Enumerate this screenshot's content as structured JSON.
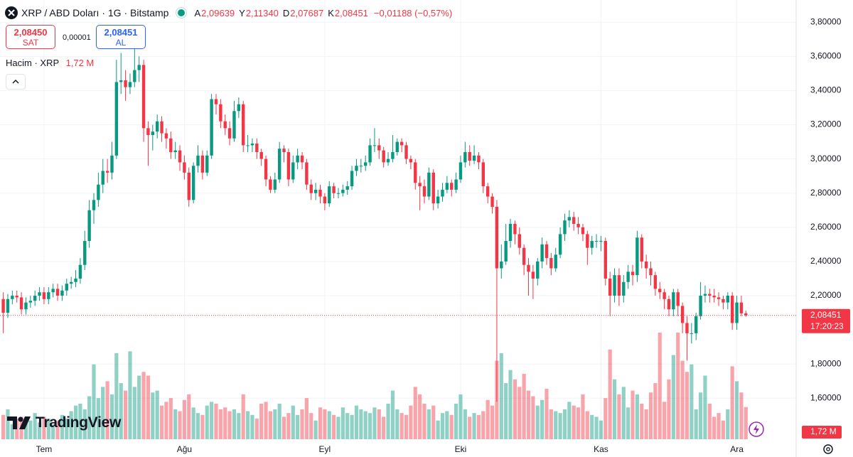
{
  "header": {
    "symbol": "XRP / ABD Doları · 1G · Bitstamp",
    "ohlc": [
      {
        "key": "A",
        "value": "2,09639"
      },
      {
        "key": "Y",
        "value": "2,11340"
      },
      {
        "key": "D",
        "value": "2,07687"
      },
      {
        "key": "K",
        "value": "2,08451"
      }
    ],
    "change": "−0,01188 (−0,57%)"
  },
  "trade": {
    "sell_price": "2,08450",
    "sell_label": "SAT",
    "spread": "0,00001",
    "buy_price": "2,08451",
    "buy_label": "AL"
  },
  "volume_legend": {
    "title": "Hacim · XRP",
    "value": "1,72 M"
  },
  "logo": "TradingView",
  "chart_data": {
    "type": "candlestick",
    "categories": [
      null,
      null,
      null,
      null,
      null,
      null,
      null,
      null,
      null,
      "Tem",
      null,
      null,
      null,
      null,
      null,
      null,
      null,
      null,
      null,
      null,
      null,
      null,
      null,
      null,
      null,
      null,
      null,
      null,
      null,
      null,
      null,
      null,
      null,
      null,
      null,
      null,
      null,
      null,
      null,
      null,
      "Ağu",
      null,
      null,
      null,
      null,
      null,
      null,
      null,
      null,
      null,
      null,
      null,
      null,
      null,
      null,
      null,
      null,
      null,
      null,
      null,
      null,
      null,
      null,
      null,
      null,
      null,
      null,
      null,
      null,
      null,
      null,
      "Eyl",
      null,
      null,
      null,
      null,
      null,
      null,
      null,
      null,
      null,
      null,
      null,
      null,
      null,
      null,
      null,
      null,
      null,
      null,
      null,
      null,
      null,
      null,
      null,
      null,
      null,
      null,
      null,
      null,
      null,
      "Eki",
      null,
      null,
      null,
      null,
      null,
      null,
      null,
      null,
      null,
      null,
      null,
      null,
      null,
      null,
      null,
      null,
      null,
      null,
      null,
      null,
      null,
      null,
      null,
      null,
      null,
      null,
      null,
      null,
      null,
      null,
      "Kas",
      null,
      null,
      null,
      null,
      null,
      null,
      null,
      null,
      null,
      null,
      null,
      null,
      null,
      null,
      null,
      null,
      null,
      null,
      null,
      null,
      null,
      null,
      null,
      null,
      null,
      null,
      null,
      null,
      null,
      "Ara",
      null,
      null
    ],
    "open": [
      2.18,
      2.1,
      2.18,
      2.2,
      2.19,
      2.12,
      2.16,
      2.17,
      2.2,
      2.22,
      2.18,
      2.22,
      2.24,
      2.2,
      2.23,
      2.27,
      2.28,
      2.3,
      2.38,
      2.52,
      2.7,
      2.76,
      2.85,
      2.93,
      2.92,
      3.02,
      3.45,
      3.46,
      3.42,
      3.45,
      3.52,
      3.55,
      3.18,
      3.14,
      3.16,
      3.22,
      3.15,
      3.12,
      3.04,
      3.05,
      2.98,
      2.92,
      2.76,
      2.96,
      3.02,
      2.92,
      3.02,
      3.35,
      3.32,
      3.22,
      3.18,
      3.12,
      3.28,
      3.32,
      3.08,
      3.08,
      3.09,
      3.04,
      3.0,
      2.88,
      2.82,
      2.88,
      3.06,
      3.04,
      2.88,
      2.98,
      3.02,
      2.98,
      2.85,
      2.8,
      2.82,
      2.78,
      2.74,
      2.84,
      2.8,
      2.8,
      2.82,
      2.84,
      2.93,
      2.96,
      2.96,
      2.98,
      3.08,
      3.08,
      3.05,
      2.98,
      3.0,
      3.04,
      3.1,
      3.08,
      3.0,
      2.98,
      2.86,
      2.84,
      2.78,
      2.92,
      2.74,
      2.78,
      2.82,
      2.86,
      2.82,
      2.88,
      2.98,
      3.04,
      2.99,
      3.02,
      2.98,
      2.84,
      2.78,
      2.72,
      2.36,
      2.4,
      2.52,
      2.62,
      2.56,
      2.48,
      2.38,
      2.34,
      2.3,
      2.4,
      2.5,
      2.42,
      2.36,
      2.44,
      2.56,
      2.64,
      2.66,
      2.62,
      2.6,
      2.56,
      2.48,
      2.52,
      2.52,
      2.52,
      2.3,
      2.2,
      2.32,
      2.2,
      2.28,
      2.34,
      2.32,
      2.54,
      2.4,
      2.36,
      2.32,
      2.24,
      2.22,
      2.18,
      2.12,
      2.22,
      2.14,
      2.04,
      1.98,
      1.98,
      2.08,
      2.2,
      2.21,
      2.2,
      2.19,
      2.18,
      2.16,
      2.2,
      2.04,
      2.16,
      2.09639
    ],
    "high": [
      2.22,
      2.21,
      2.23,
      2.23,
      2.22,
      2.19,
      2.2,
      2.23,
      2.25,
      2.25,
      2.25,
      2.27,
      2.27,
      2.26,
      2.3,
      2.31,
      2.35,
      2.42,
      2.58,
      2.76,
      2.8,
      2.92,
      3.0,
      3.0,
      3.1,
      3.58,
      3.62,
      3.52,
      3.5,
      3.65,
      3.6,
      3.58,
      3.22,
      3.2,
      3.26,
      3.25,
      3.18,
      3.16,
      3.1,
      3.08,
      3.02,
      2.95,
      2.98,
      3.08,
      3.05,
      3.05,
      3.38,
      3.38,
      3.35,
      3.26,
      3.22,
      3.34,
      3.36,
      3.34,
      3.14,
      3.12,
      3.12,
      3.06,
      3.02,
      2.9,
      2.92,
      3.1,
      3.08,
      3.06,
      3.02,
      3.06,
      3.04,
      3.0,
      2.88,
      2.86,
      2.85,
      2.8,
      2.87,
      2.86,
      2.83,
      2.85,
      2.87,
      2.96,
      3.0,
      3.0,
      3.02,
      3.12,
      3.18,
      3.12,
      3.07,
      3.04,
      3.14,
      3.12,
      3.12,
      3.1,
      3.02,
      3.0,
      2.9,
      2.88,
      2.95,
      2.94,
      2.82,
      2.86,
      2.9,
      2.88,
      2.92,
      3.02,
      3.1,
      3.08,
      3.08,
      3.04,
      3.0,
      2.86,
      2.8,
      2.76,
      2.5,
      2.62,
      2.65,
      2.64,
      2.6,
      2.5,
      2.42,
      2.38,
      2.42,
      2.54,
      2.52,
      2.45,
      2.48,
      2.6,
      2.68,
      2.7,
      2.69,
      2.66,
      2.62,
      2.58,
      2.55,
      2.56,
      2.55,
      2.54,
      2.34,
      2.36,
      2.36,
      2.32,
      2.38,
      2.38,
      2.58,
      2.56,
      2.44,
      2.4,
      2.34,
      2.28,
      2.24,
      2.2,
      2.24,
      2.24,
      2.16,
      2.08,
      2.04,
      2.1,
      2.28,
      2.26,
      2.24,
      2.24,
      2.22,
      2.2,
      2.22,
      2.22,
      2.2,
      2.2,
      2.1134
    ],
    "low": [
      1.98,
      2.07,
      2.15,
      2.16,
      2.09,
      2.09,
      2.13,
      2.14,
      2.17,
      2.15,
      2.15,
      2.19,
      2.17,
      2.17,
      2.2,
      2.24,
      2.25,
      2.27,
      2.35,
      2.48,
      2.62,
      2.72,
      2.8,
      2.86,
      2.88,
      3.0,
      3.38,
      3.34,
      3.38,
      3.42,
      3.45,
      3.1,
      2.96,
      3.05,
      3.12,
      3.1,
      3.06,
      3.0,
      3.0,
      2.93,
      2.88,
      2.72,
      2.74,
      2.92,
      2.88,
      2.9,
      3.0,
      3.26,
      3.18,
      3.14,
      3.08,
      3.1,
      3.24,
      3.04,
      3.04,
      3.04,
      3.0,
      2.96,
      2.84,
      2.8,
      2.8,
      2.86,
      2.98,
      2.84,
      2.86,
      2.94,
      2.94,
      2.82,
      2.76,
      2.76,
      2.74,
      2.7,
      2.72,
      2.77,
      2.77,
      2.78,
      2.79,
      2.82,
      2.9,
      2.92,
      2.93,
      2.96,
      3.04,
      3.0,
      2.95,
      2.96,
      2.98,
      3.02,
      3.04,
      2.97,
      2.94,
      2.82,
      2.7,
      2.74,
      2.76,
      2.7,
      2.71,
      2.75,
      2.8,
      2.78,
      2.8,
      2.86,
      2.95,
      2.96,
      2.97,
      2.94,
      2.8,
      2.74,
      2.68,
      1.58,
      2.3,
      2.38,
      2.48,
      2.5,
      2.44,
      2.32,
      2.2,
      2.18,
      2.26,
      2.36,
      2.38,
      2.32,
      2.34,
      2.42,
      2.52,
      2.6,
      2.58,
      2.56,
      2.52,
      2.38,
      2.44,
      2.48,
      2.46,
      2.26,
      2.08,
      2.16,
      2.14,
      2.16,
      2.24,
      2.26,
      2.28,
      2.36,
      2.3,
      2.26,
      2.2,
      2.18,
      2.12,
      2.08,
      2.08,
      2.08,
      1.98,
      1.82,
      1.92,
      1.94,
      2.06,
      2.16,
      2.16,
      2.16,
      2.14,
      2.12,
      2.12,
      2.0,
      2.0,
      2.08,
      2.07687
    ],
    "close": [
      2.1,
      2.18,
      2.2,
      2.19,
      2.12,
      2.16,
      2.17,
      2.2,
      2.22,
      2.18,
      2.22,
      2.24,
      2.2,
      2.23,
      2.27,
      2.28,
      2.3,
      2.38,
      2.52,
      2.7,
      2.76,
      2.85,
      2.93,
      2.92,
      3.02,
      3.45,
      3.46,
      3.42,
      3.45,
      3.52,
      3.55,
      3.18,
      3.14,
      3.16,
      3.22,
      3.15,
      3.12,
      3.04,
      3.05,
      2.98,
      2.92,
      2.76,
      2.96,
      3.02,
      2.92,
      3.02,
      3.35,
      3.32,
      3.22,
      3.18,
      3.12,
      3.28,
      3.32,
      3.08,
      3.08,
      3.09,
      3.04,
      3.0,
      2.88,
      2.82,
      2.88,
      3.06,
      3.04,
      2.88,
      2.98,
      3.02,
      2.98,
      2.85,
      2.8,
      2.82,
      2.78,
      2.74,
      2.84,
      2.8,
      2.8,
      2.82,
      2.84,
      2.93,
      2.96,
      2.96,
      2.98,
      3.08,
      3.08,
      3.05,
      2.98,
      3.0,
      3.04,
      3.1,
      3.08,
      3.0,
      2.98,
      2.86,
      2.84,
      2.78,
      2.92,
      2.74,
      2.78,
      2.82,
      2.86,
      2.82,
      2.88,
      2.98,
      3.04,
      2.99,
      3.02,
      2.98,
      2.84,
      2.78,
      2.72,
      2.36,
      2.4,
      2.52,
      2.62,
      2.56,
      2.48,
      2.38,
      2.34,
      2.3,
      2.4,
      2.5,
      2.42,
      2.36,
      2.44,
      2.56,
      2.64,
      2.66,
      2.62,
      2.6,
      2.56,
      2.48,
      2.52,
      2.52,
      2.52,
      2.3,
      2.2,
      2.32,
      2.2,
      2.28,
      2.34,
      2.32,
      2.54,
      2.4,
      2.36,
      2.32,
      2.24,
      2.22,
      2.18,
      2.12,
      2.22,
      2.14,
      2.04,
      1.98,
      1.98,
      2.08,
      2.2,
      2.21,
      2.2,
      2.19,
      2.18,
      2.16,
      2.2,
      2.04,
      2.16,
      2.09639,
      2.08451
    ],
    "volume": [
      1.3,
      1.6,
      0.8,
      1.1,
      1.2,
      0.9,
      1.0,
      1.4,
      0.9,
      1.2,
      1.1,
      0.8,
      1.0,
      1.3,
      1.1,
      1.5,
      1.8,
      1.9,
      1.6,
      2.3,
      4.0,
      2.2,
      2.8,
      3.1,
      2.4,
      4.6,
      3.0,
      2.6,
      4.7,
      2.8,
      3.4,
      3.6,
      3.4,
      2.5,
      2.6,
      1.8,
      2.0,
      2.2,
      1.6,
      1.5,
      2.1,
      2.4,
      1.7,
      1.4,
      1.3,
      1.8,
      2.0,
      1.9,
      1.6,
      1.7,
      1.5,
      1.6,
      1.4,
      2.4,
      1.5,
      1.3,
      1.1,
      1.9,
      2.0,
      1.5,
      1.6,
      1.9,
      1.2,
      1.4,
      1.8,
      1.3,
      1.6,
      2.2,
      1.4,
      1.0,
      1.7,
      1.6,
      1.5,
      1.3,
      1.2,
      1.7,
      1.4,
      1.3,
      1.8,
      1.6,
      1.5,
      1.4,
      1.7,
      1.6,
      1.2,
      1.9,
      2.6,
      1.6,
      1.4,
      1.3,
      1.8,
      2.8,
      2.4,
      1.9,
      1.6,
      1.8,
      1.0,
      1.4,
      1.5,
      1.3,
      1.9,
      2.4,
      1.6,
      1.2,
      1.4,
      1.3,
      1.5,
      2.1,
      1.8,
      4.2,
      4.6,
      3.0,
      3.7,
      3.2,
      2.8,
      3.5,
      2.6,
      2.3,
      1.8,
      2.1,
      2.7,
      1.6,
      1.5,
      1.4,
      1.6,
      2.0,
      1.8,
      1.7,
      2.4,
      1.5,
      1.3,
      1.2,
      1.0,
      2.2,
      4.8,
      3.2,
      2.4,
      2.8,
      1.7,
      2.6,
      2.4,
      1.9,
      1.6,
      2.5,
      3.0,
      5.7,
      2.0,
      3.2,
      4.5,
      5.7,
      4.2,
      3.6,
      4.0,
      1.6,
      2.5,
      3.4,
      1.9,
      1.2,
      1.4,
      1.0,
      1.6,
      3.9,
      3.1,
      2.5,
      1.72
    ],
    "volume_label": "1,72 M",
    "up_color": "#089981",
    "down_color": "#f23645",
    "ylim": [
      1.36,
      3.93
    ],
    "yticks": [
      {
        "value": 1.6,
        "label": "1,60000"
      },
      {
        "value": 1.8,
        "label": "1,80000"
      },
      {
        "value": 2.2,
        "label": "2,20000"
      },
      {
        "value": 2.4,
        "label": "2,40000"
      },
      {
        "value": 2.6,
        "label": "2,60000"
      },
      {
        "value": 2.8,
        "label": "2,80000"
      },
      {
        "value": 3.0,
        "label": "3,00000"
      },
      {
        "value": 3.2,
        "label": "3,20000"
      },
      {
        "value": 3.4,
        "label": "3,40000"
      },
      {
        "value": 3.6,
        "label": "3,60000"
      },
      {
        "value": 3.8,
        "label": "3,80000"
      }
    ],
    "grid": true,
    "last_price": {
      "value": 2.08451,
      "label": "2,08451"
    },
    "countdown": "17:20:23"
  }
}
